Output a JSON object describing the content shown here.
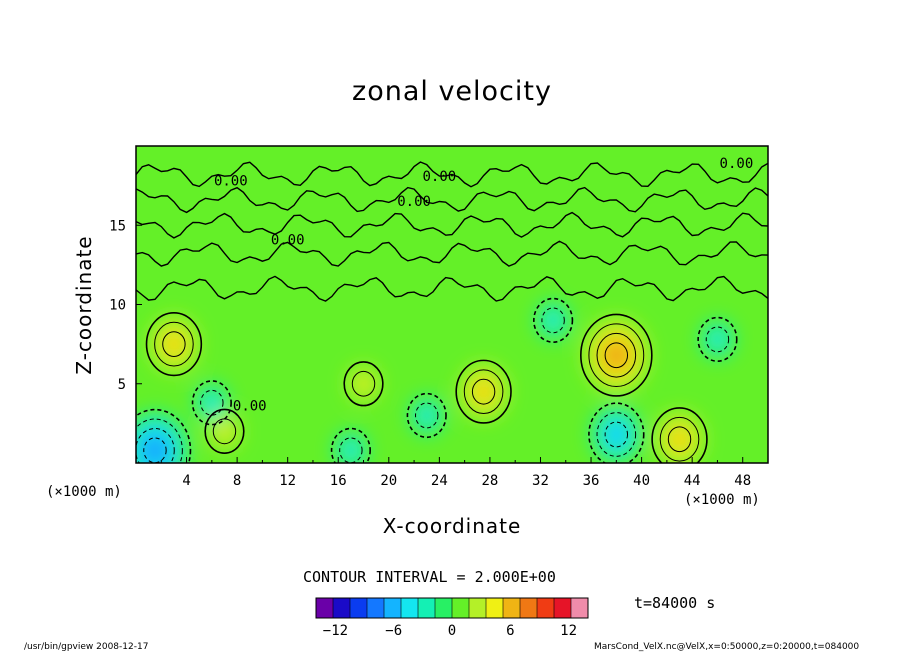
{
  "chart_data": {
    "type": "heatmap",
    "title": "zonal velocity",
    "xlabel": "X-coordinate",
    "ylabel": "Z-coordinate",
    "x_unit_label": "(×1000 m)",
    "x_ticks": [
      "4",
      "8",
      "12",
      "16",
      "20",
      "24",
      "28",
      "32",
      "36",
      "40",
      "44",
      "48"
    ],
    "y_ticks": [
      "5",
      "10",
      "15"
    ],
    "xlim": [
      0,
      50
    ],
    "ylim": [
      0,
      20
    ],
    "contour_labels": [
      "0.00",
      "0.00",
      "0.00",
      "0.00",
      "0.00",
      "0.00"
    ],
    "contour_interval_text": "CONTOUR INTERVAL = 2.000E+00",
    "time_text": "t=84000 s",
    "colorbar": {
      "range": [
        -14,
        14
      ],
      "ticks": [
        "−12",
        "−6",
        "0",
        "6",
        "12"
      ],
      "colors": [
        "#6a00a8",
        "#1a0ac8",
        "#0a3cf0",
        "#1478ff",
        "#14b4ff",
        "#14e6f0",
        "#14f0b4",
        "#28f064",
        "#64f028",
        "#b4f028",
        "#f0f014",
        "#f0b414",
        "#f07814",
        "#f03c14",
        "#e61428",
        "#f08caa"
      ]
    },
    "features": [
      {
        "x": 38,
        "z": 6.8,
        "value": 8,
        "kind": "max"
      },
      {
        "x": 3,
        "z": 7.5,
        "value": 6,
        "kind": "max"
      },
      {
        "x": 18,
        "z": 5,
        "value": 4,
        "kind": "max"
      },
      {
        "x": 27.5,
        "z": 4.5,
        "value": 6,
        "kind": "max"
      },
      {
        "x": 7,
        "z": 2,
        "value": 4,
        "kind": "max"
      },
      {
        "x": 43,
        "z": 1.5,
        "value": 6,
        "kind": "max"
      },
      {
        "x": 38,
        "z": 1.8,
        "value": -6,
        "kind": "min"
      },
      {
        "x": 6,
        "z": 3.8,
        "value": -4,
        "kind": "min"
      },
      {
        "x": 1.5,
        "z": 0.8,
        "value": -8,
        "kind": "min"
      },
      {
        "x": 46,
        "z": 7.8,
        "value": -4,
        "kind": "min"
      },
      {
        "x": 33,
        "z": 9,
        "value": -4,
        "kind": "min"
      },
      {
        "x": 23,
        "z": 3,
        "value": -4,
        "kind": "min"
      },
      {
        "x": 17,
        "z": 0.8,
        "value": -4,
        "kind": "min"
      }
    ]
  },
  "footer": {
    "left": "/usr/bin/gpview   2008-12-17",
    "right": "MarsCond_VelX.nc@VelX,x=0:50000,z=0:20000,t=084000"
  }
}
